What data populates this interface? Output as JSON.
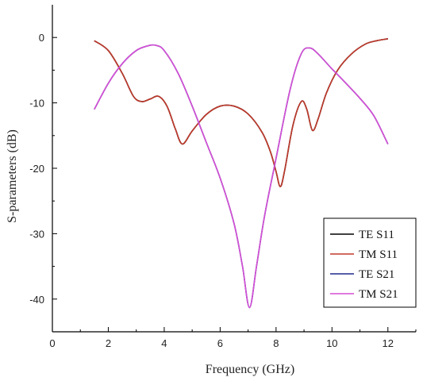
{
  "chart_data": {
    "type": "line",
    "title": "",
    "xlabel": "Frequency (GHz)",
    "ylabel": "S-parameters (dB)",
    "xlim": [
      0,
      13
    ],
    "ylim": [
      -45,
      5
    ],
    "xticks": [
      0,
      2,
      4,
      6,
      8,
      10,
      12
    ],
    "yticks": [
      0,
      -10,
      -20,
      -30,
      -40
    ],
    "grid": false,
    "legend_position": "bottom-right",
    "series": [
      {
        "name": "TE S11",
        "color": "#000000",
        "x": [
          1.5,
          2.0,
          2.5,
          2.9,
          3.2,
          3.5,
          3.8,
          4.1,
          4.4,
          4.65,
          5.0,
          5.5,
          6.0,
          6.5,
          7.0,
          7.5,
          7.8,
          8.0,
          8.15,
          8.3,
          8.6,
          8.9,
          9.1,
          9.3,
          9.5,
          9.8,
          10.2,
          10.7,
          11.2,
          11.6,
          12.0
        ],
        "y": [
          -0.5,
          -2.0,
          -5.5,
          -9.0,
          -9.8,
          -9.4,
          -9.0,
          -10.5,
          -14.0,
          -16.3,
          -14.3,
          -11.8,
          -10.5,
          -10.5,
          -11.7,
          -14.5,
          -17.5,
          -20.5,
          -22.8,
          -20.5,
          -13.5,
          -9.8,
          -11.0,
          -14.2,
          -12.5,
          -8.5,
          -5.0,
          -2.5,
          -1.0,
          -0.5,
          -0.2
        ]
      },
      {
        "name": "TM S11",
        "color": "#c0392b",
        "x": [
          1.5,
          2.0,
          2.5,
          2.9,
          3.2,
          3.5,
          3.8,
          4.1,
          4.4,
          4.65,
          5.0,
          5.5,
          6.0,
          6.5,
          7.0,
          7.5,
          7.8,
          8.0,
          8.15,
          8.3,
          8.6,
          8.9,
          9.1,
          9.3,
          9.5,
          9.8,
          10.2,
          10.7,
          11.2,
          11.6,
          12.0
        ],
        "y": [
          -0.5,
          -2.0,
          -5.5,
          -9.0,
          -9.8,
          -9.4,
          -9.0,
          -10.5,
          -14.0,
          -16.3,
          -14.3,
          -11.8,
          -10.5,
          -10.5,
          -11.7,
          -14.5,
          -17.5,
          -20.5,
          -22.8,
          -20.5,
          -13.5,
          -9.8,
          -11.0,
          -14.2,
          -12.5,
          -8.5,
          -5.0,
          -2.5,
          -1.0,
          -0.5,
          -0.2
        ]
      },
      {
        "name": "TE S21",
        "color": "#1f2a8c",
        "x": [
          1.5,
          2.0,
          2.5,
          3.0,
          3.4,
          3.7,
          4.0,
          4.5,
          5.0,
          5.5,
          6.0,
          6.5,
          6.8,
          7.05,
          7.3,
          7.6,
          8.0,
          8.5,
          8.9,
          9.2,
          9.5,
          10.0,
          10.5,
          11.0,
          11.5,
          12.0
        ],
        "y": [
          -11.0,
          -7.0,
          -4.0,
          -2.0,
          -1.3,
          -1.2,
          -2.0,
          -5.5,
          -10.5,
          -16.0,
          -21.5,
          -28.5,
          -35.0,
          -41.3,
          -35.0,
          -27.0,
          -18.5,
          -8.0,
          -2.5,
          -1.6,
          -2.5,
          -4.8,
          -7.0,
          -9.3,
          -12.0,
          -16.3
        ]
      },
      {
        "name": "TM S21",
        "color": "#d64fd6",
        "x": [
          1.5,
          2.0,
          2.5,
          3.0,
          3.4,
          3.7,
          4.0,
          4.5,
          5.0,
          5.5,
          6.0,
          6.5,
          6.8,
          7.05,
          7.3,
          7.6,
          8.0,
          8.5,
          8.9,
          9.2,
          9.5,
          10.0,
          10.5,
          11.0,
          11.5,
          12.0
        ],
        "y": [
          -11.0,
          -7.0,
          -4.0,
          -2.0,
          -1.3,
          -1.2,
          -2.0,
          -5.5,
          -10.5,
          -16.0,
          -21.5,
          -28.5,
          -35.0,
          -41.3,
          -35.0,
          -27.0,
          -18.5,
          -8.0,
          -2.5,
          -1.6,
          -2.5,
          -4.8,
          -7.0,
          -9.3,
          -12.0,
          -16.3
        ]
      }
    ]
  }
}
